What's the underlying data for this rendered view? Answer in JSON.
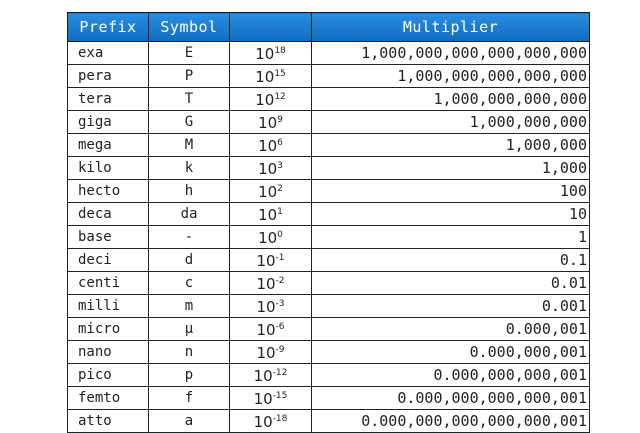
{
  "headers": {
    "prefix": "Prefix",
    "symbol": "Symbol",
    "exponent": "",
    "multiplier": "Multiplier"
  },
  "header_color": "#1a7dd0",
  "rows": [
    {
      "prefix": "exa",
      "symbol": "E",
      "base": "10",
      "exp": "18",
      "multiplier": "1,000,000,000,000,000,000"
    },
    {
      "prefix": "pera",
      "symbol": "P",
      "base": "10",
      "exp": "15",
      "multiplier": "1,000,000,000,000,000"
    },
    {
      "prefix": "tera",
      "symbol": "T",
      "base": "10",
      "exp": "12",
      "multiplier": "1,000,000,000,000"
    },
    {
      "prefix": "giga",
      "symbol": "G",
      "base": "10",
      "exp": "9",
      "multiplier": "1,000,000,000"
    },
    {
      "prefix": "mega",
      "symbol": "M",
      "base": "10",
      "exp": "6",
      "multiplier": "1,000,000"
    },
    {
      "prefix": "kilo",
      "symbol": "k",
      "base": "10",
      "exp": "3",
      "multiplier": "1,000"
    },
    {
      "prefix": "hecto",
      "symbol": "h",
      "base": "10",
      "exp": "2",
      "multiplier": "100"
    },
    {
      "prefix": "deca",
      "symbol": "da",
      "base": "10",
      "exp": "1",
      "multiplier": "10"
    },
    {
      "prefix": "base",
      "symbol": "-",
      "base": "10",
      "exp": "0",
      "multiplier": "1"
    },
    {
      "prefix": "deci",
      "symbol": "d",
      "base": "10",
      "exp": "-1",
      "multiplier": "0.1"
    },
    {
      "prefix": "centi",
      "symbol": "c",
      "base": "10",
      "exp": "-2",
      "multiplier": "0.01"
    },
    {
      "prefix": "milli",
      "symbol": "m",
      "base": "10",
      "exp": "-3",
      "multiplier": "0.001"
    },
    {
      "prefix": "micro",
      "symbol": "µ",
      "base": "10",
      "exp": "-6",
      "multiplier": "0.000,001"
    },
    {
      "prefix": "nano",
      "symbol": "n",
      "base": "10",
      "exp": "-9",
      "multiplier": "0.000,000,001"
    },
    {
      "prefix": "pico",
      "symbol": "p",
      "base": "10",
      "exp": "-12",
      "multiplier": "0.000,000,000,001"
    },
    {
      "prefix": "femto",
      "symbol": "f",
      "base": "10",
      "exp": "-15",
      "multiplier": "0.000,000,000,000,001"
    },
    {
      "prefix": "atto",
      "symbol": "a",
      "base": "10",
      "exp": "-18",
      "multiplier": "0.000,000,000,000,000,001"
    }
  ]
}
